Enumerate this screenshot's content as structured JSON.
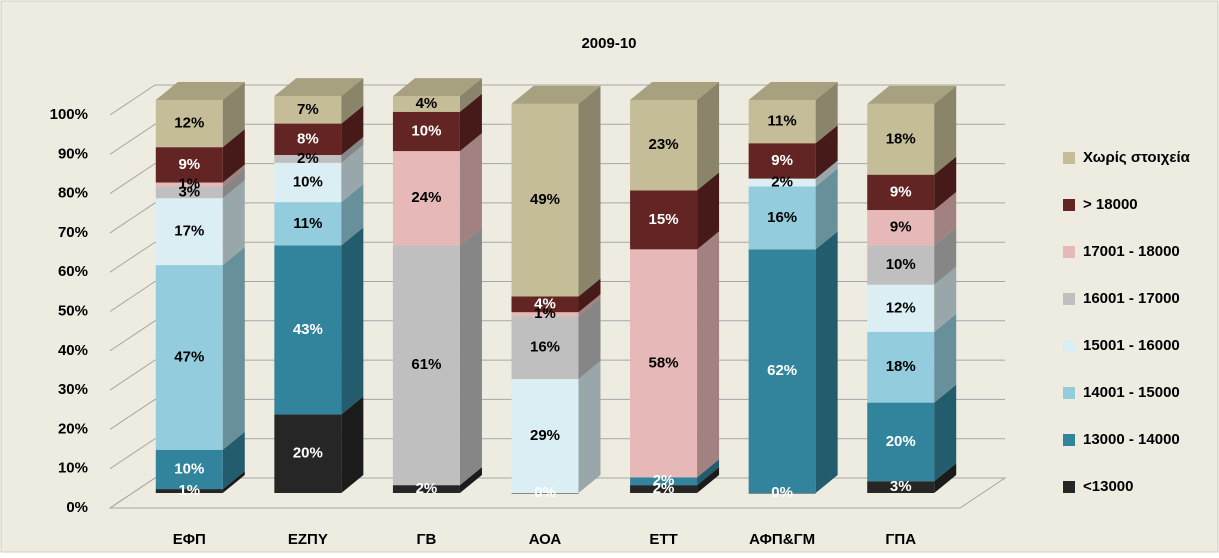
{
  "chart_data": {
    "type": "bar3d_stacked",
    "title": "2009-10",
    "categories": [
      "ΕΦΠ",
      "ΕΖΠΥ",
      "ΓΒ",
      "ΑΟΑ",
      "ΕΤΤ",
      "ΑΦΠ&ΓΜ",
      "ΓΠΑ"
    ],
    "ylim": [
      0,
      100
    ],
    "yticks": [
      {
        "value": 0,
        "label": "0%"
      },
      {
        "value": 10,
        "label": "10%"
      },
      {
        "value": 20,
        "label": "20%"
      },
      {
        "value": 30,
        "label": "30%"
      },
      {
        "value": 40,
        "label": "40%"
      },
      {
        "value": 50,
        "label": "50%"
      },
      {
        "value": 60,
        "label": "60%"
      },
      {
        "value": 70,
        "label": "70%"
      },
      {
        "value": 80,
        "label": "80%"
      },
      {
        "value": 90,
        "label": "90%"
      },
      {
        "value": 100,
        "label": "100%"
      }
    ],
    "grid": true,
    "legend": "right",
    "series": [
      {
        "name": "<13000",
        "color": "#262626",
        "values": [
          1,
          20,
          2,
          0,
          2,
          0,
          3
        ],
        "value_labels": [
          "1%",
          "20%",
          "2%",
          "0%",
          "2%",
          "0%",
          "3%"
        ]
      },
      {
        "name": "13000 - 14000",
        "color": "#31849b",
        "values": [
          10,
          43,
          null,
          null,
          2,
          62,
          20
        ],
        "value_labels": [
          "10%",
          "43%",
          null,
          null,
          "2%",
          "62%",
          "20%"
        ]
      },
      {
        "name": "14001 - 15000",
        "color": "#93cddd",
        "values": [
          47,
          11,
          null,
          null,
          null,
          16,
          18
        ],
        "value_labels": [
          "47%",
          "11%",
          null,
          null,
          null,
          "16%",
          "18%"
        ]
      },
      {
        "name": "15001 - 16000",
        "color": "#dbeef4",
        "values": [
          17,
          10,
          null,
          29,
          null,
          2,
          12
        ],
        "value_labels": [
          "17%",
          "10%",
          null,
          "29%",
          null,
          "2%",
          "12%"
        ]
      },
      {
        "name": "16001 - 17000",
        "color": "#bfbfbf",
        "values": [
          3,
          2,
          61,
          16,
          null,
          null,
          10
        ],
        "value_labels": [
          "3%",
          "2%",
          "61%",
          "16%",
          null,
          null,
          "10%"
        ]
      },
      {
        "name": "17001 - 18000",
        "color": "#e6b9b8",
        "values": [
          1,
          null,
          24,
          1,
          58,
          null,
          9
        ],
        "value_labels": [
          "1%",
          null,
          "24%",
          "1%",
          "58%",
          null,
          "9%"
        ]
      },
      {
        "name": "> 18000",
        "color": "#632523",
        "values": [
          9,
          8,
          10,
          4,
          15,
          9,
          9
        ],
        "value_labels": [
          "9%",
          "8%",
          "10%",
          "4%",
          "15%",
          "9%",
          "9%"
        ]
      },
      {
        "name": "Χωρίς στοιχεία",
        "color": "#c4bd97",
        "values": [
          12,
          7,
          4,
          49,
          23,
          11,
          18
        ],
        "value_labels": [
          "12%",
          "7%",
          "4%",
          "49%",
          "23%",
          "11%",
          "18%"
        ]
      }
    ]
  }
}
